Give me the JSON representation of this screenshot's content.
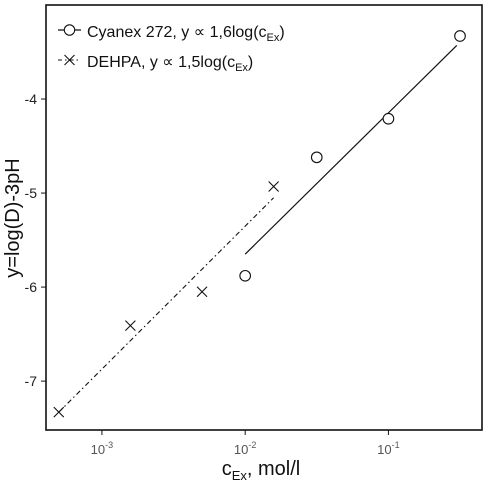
{
  "chart_data": {
    "type": "scatter",
    "title": "",
    "xlabel": "cEx, mol/l",
    "ylabel": "y=log(D)-3pH",
    "x_scale": "log",
    "xlim": [
      0.000407,
      0.45
    ],
    "ylim": [
      -7.52,
      -3.0
    ],
    "grid": false,
    "legend": "top-left",
    "x_ticks": [
      {
        "value": 0.001,
        "base": "10",
        "exponent": "-3"
      },
      {
        "value": 0.01,
        "base": "10",
        "exponent": "-2"
      },
      {
        "value": 0.1,
        "base": "10",
        "exponent": "-1"
      }
    ],
    "y_ticks": [
      {
        "value": -4,
        "label": "-4"
      },
      {
        "value": -5,
        "label": "-5"
      },
      {
        "value": -6,
        "label": "-6"
      },
      {
        "value": -7,
        "label": "-7"
      }
    ],
    "series": [
      {
        "name": "Cyanex 272, y ∝ 1,6log(cEx)",
        "marker": "circle",
        "line_style": "solid",
        "color": "#111111",
        "points": [
          {
            "x": 0.01,
            "y": -5.88
          },
          {
            "x": 0.0316,
            "y": -4.62
          },
          {
            "x": 0.1,
            "y": -4.21
          },
          {
            "x": 0.316,
            "y": -3.33
          }
        ],
        "fit_line": [
          {
            "x": 0.01,
            "y": -5.65
          },
          {
            "x": 0.3,
            "y": -3.43
          }
        ]
      },
      {
        "name": "DEHPA, y ∝ 1,5log(cEx)",
        "marker": "x",
        "line_style": "dashdot",
        "color": "#111111",
        "points": [
          {
            "x": 0.0005,
            "y": -7.33
          },
          {
            "x": 0.00158,
            "y": -6.41
          },
          {
            "x": 0.005,
            "y": -6.05
          },
          {
            "x": 0.0158,
            "y": -4.93
          }
        ],
        "fit_line": [
          {
            "x": 0.0005,
            "y": -7.33
          },
          {
            "x": 0.0158,
            "y": -5.05
          }
        ]
      }
    ]
  },
  "legend": {
    "items": [
      {
        "prefix": "Cyanex 272, y ∝ 1,6log(c",
        "subscript": "Ex",
        "suffix": ")"
      },
      {
        "prefix": "DEHPA, y ∝ 1,5log(c",
        "subscript": "Ex",
        "suffix": ")"
      }
    ]
  },
  "axes": {
    "x_label_main": "c",
    "x_label_sub": "Ex",
    "x_label_rest": ", mol/l",
    "y_label": "y=log(D)-3pH"
  },
  "colors": {
    "ink": "#111111",
    "tick_text": "#555555",
    "background": "#ffffff"
  }
}
